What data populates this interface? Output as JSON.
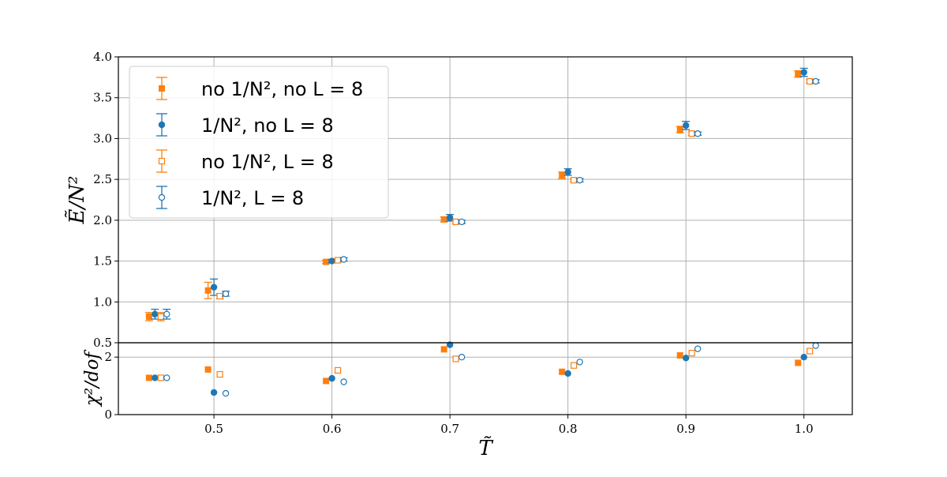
{
  "chart_data": [
    {
      "type": "scatter",
      "panel": "top",
      "ylabel": "Ẽ/N²",
      "xlim": [
        0.419,
        1.041
      ],
      "ylim": [
        0.5,
        4.0
      ],
      "yticks": [
        "0.5",
        "1.0",
        "1.5",
        "2.0",
        "2.5",
        "3.0",
        "3.5",
        "4.0"
      ],
      "grid": true,
      "legend_position": "top-left",
      "series": [
        {
          "name": "no 1/N², no L = 8",
          "color": "#ff7f0e",
          "marker": "square-filled",
          "x": [
            0.445,
            0.495,
            0.595,
            0.695,
            0.795,
            0.895,
            0.995
          ],
          "y": [
            0.82,
            1.14,
            1.49,
            2.01,
            2.55,
            3.11,
            3.79
          ],
          "yerr": [
            0.05,
            0.1,
            0.02,
            0.03,
            0.04,
            0.04,
            0.04
          ]
        },
        {
          "name": "1/N², no L = 8",
          "color": "#1f77b4",
          "marker": "circle-filled",
          "x": [
            0.45,
            0.5,
            0.6,
            0.7,
            0.8,
            0.9,
            1.0
          ],
          "y": [
            0.85,
            1.18,
            1.5,
            2.03,
            2.59,
            3.16,
            3.81
          ],
          "yerr": [
            0.06,
            0.1,
            0.02,
            0.04,
            0.04,
            0.05,
            0.05
          ]
        },
        {
          "name": "no 1/N², L = 8",
          "color": "#ff7f0e",
          "marker": "square-open",
          "x": [
            0.455,
            0.505,
            0.605,
            0.705,
            0.805,
            0.905,
            1.005
          ],
          "y": [
            0.82,
            1.07,
            1.51,
            1.98,
            2.49,
            3.06,
            3.7
          ],
          "yerr": [
            0.05,
            0.03,
            0.02,
            0.02,
            0.02,
            0.02,
            0.02
          ]
        },
        {
          "name": "1/N², L = 8",
          "color": "#1f77b4",
          "marker": "circle-open",
          "x": [
            0.46,
            0.51,
            0.61,
            0.71,
            0.81,
            0.91,
            1.01
          ],
          "y": [
            0.85,
            1.1,
            1.52,
            1.98,
            2.49,
            3.06,
            3.7
          ],
          "yerr": [
            0.06,
            0.03,
            0.02,
            0.02,
            0.02,
            0.02,
            0.02
          ]
        }
      ]
    },
    {
      "type": "scatter",
      "panel": "bottom",
      "xlabel": "T̃",
      "ylabel": "χ²/dof",
      "xlim": [
        0.419,
        1.041
      ],
      "ylim": [
        0,
        2.5
      ],
      "xticks": [
        "0.5",
        "0.6",
        "0.7",
        "0.8",
        "0.9",
        "1.0"
      ],
      "yticks": [
        "0",
        "2"
      ],
      "grid": true,
      "series": [
        {
          "name": "no 1/N², no L = 8",
          "color": "#ff7f0e",
          "marker": "square-filled",
          "x": [
            0.445,
            0.495,
            0.595,
            0.695,
            0.795,
            0.895,
            0.995
          ],
          "y": [
            1.28,
            1.57,
            1.17,
            2.27,
            1.49,
            2.06,
            1.8
          ]
        },
        {
          "name": "1/N², no L = 8",
          "color": "#1f77b4",
          "marker": "circle-filled",
          "x": [
            0.45,
            0.5,
            0.6,
            0.7,
            0.8,
            0.9,
            1.0
          ],
          "y": [
            1.28,
            0.77,
            1.26,
            2.43,
            1.43,
            1.97,
            2.0
          ]
        },
        {
          "name": "no 1/N², L = 8",
          "color": "#ff7f0e",
          "marker": "square-open",
          "x": [
            0.455,
            0.505,
            0.605,
            0.705,
            0.805,
            0.905,
            1.005
          ],
          "y": [
            1.28,
            1.4,
            1.54,
            1.94,
            1.71,
            2.14,
            2.21
          ]
        },
        {
          "name": "1/N², L = 8",
          "color": "#1f77b4",
          "marker": "circle-open",
          "x": [
            0.46,
            0.51,
            0.61,
            0.71,
            0.81,
            0.91,
            1.01
          ],
          "y": [
            1.28,
            0.74,
            1.14,
            2.0,
            1.83,
            2.29,
            2.4
          ]
        }
      ]
    }
  ]
}
